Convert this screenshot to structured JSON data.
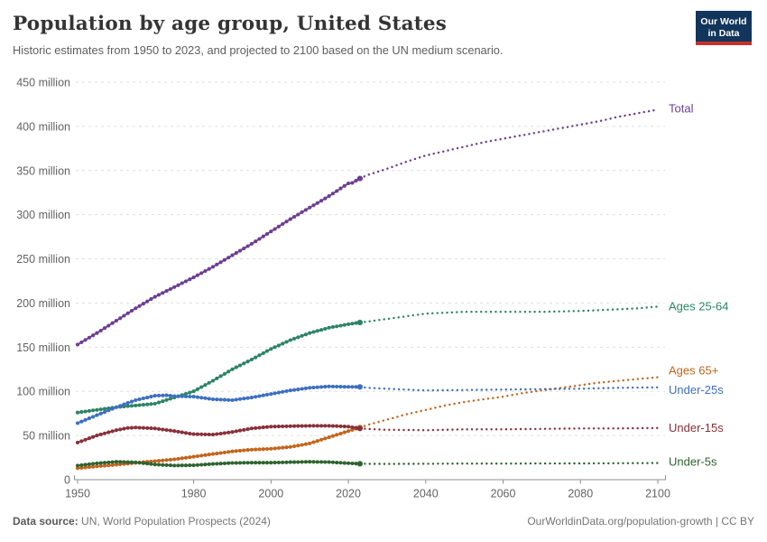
{
  "header": {
    "title": "Population by age group, United States",
    "subtitle": "Historic estimates from 1950 to 2023, and projected to 2100 based on the UN medium scenario.",
    "logo": {
      "line1": "Our World",
      "line2": "in Data"
    }
  },
  "footer": {
    "source_label": "Data source:",
    "source_text": " UN, World Population Prospects (2024)",
    "credit": "OurWorldinData.org/population-growth | CC BY"
  },
  "colors": {
    "grid": "#dedede",
    "axis": "#8f8f8f",
    "tick_text": "#636363",
    "logo_bg": "#12355B",
    "logo_accent": "#C7302B"
  },
  "chart_data": {
    "type": "line",
    "title": "Population by age group, United States",
    "unit": "million people",
    "grid": true,
    "legend_position": "right-inline-labels",
    "projection_start_year": 2023,
    "x": {
      "min": 1950,
      "max": 2100,
      "ticks": [
        1950,
        1980,
        2000,
        2020,
        2040,
        2060,
        2080,
        2100
      ]
    },
    "y": {
      "min": 0,
      "max": 450,
      "ticks": [
        0,
        50,
        100,
        150,
        200,
        250,
        300,
        350,
        400,
        450
      ],
      "tick_labels": [
        "0",
        "50 million",
        "100 million",
        "150 million",
        "200 million",
        "250 million",
        "300 million",
        "350 million",
        "400 million",
        "450 million"
      ]
    },
    "series": [
      {
        "name": "Total",
        "color": "#6D3E91",
        "label_dy": 3,
        "points": [
          [
            1950,
            153
          ],
          [
            1955,
            166
          ],
          [
            1960,
            180
          ],
          [
            1965,
            194
          ],
          [
            1970,
            207
          ],
          [
            1975,
            218
          ],
          [
            1980,
            229
          ],
          [
            1985,
            241
          ],
          [
            1990,
            254
          ],
          [
            1995,
            267
          ],
          [
            2000,
            281
          ],
          [
            2005,
            295
          ],
          [
            2010,
            308
          ],
          [
            2015,
            321
          ],
          [
            2020,
            335.5
          ],
          [
            2021,
            336
          ],
          [
            2023,
            341
          ],
          [
            2025,
            345
          ],
          [
            2030,
            352
          ],
          [
            2035,
            360
          ],
          [
            2040,
            367
          ],
          [
            2045,
            372
          ],
          [
            2050,
            377
          ],
          [
            2055,
            382
          ],
          [
            2060,
            386
          ],
          [
            2065,
            390
          ],
          [
            2070,
            394
          ],
          [
            2075,
            398
          ],
          [
            2080,
            402
          ],
          [
            2085,
            406
          ],
          [
            2090,
            411
          ],
          [
            2095,
            415
          ],
          [
            2100,
            419
          ]
        ]
      },
      {
        "name": "Ages 25-64",
        "color": "#2C8465",
        "label_dy": 4,
        "points": [
          [
            1950,
            76
          ],
          [
            1955,
            79
          ],
          [
            1960,
            82
          ],
          [
            1965,
            84
          ],
          [
            1970,
            86
          ],
          [
            1975,
            93
          ],
          [
            1980,
            100
          ],
          [
            1985,
            112
          ],
          [
            1990,
            125
          ],
          [
            1995,
            136
          ],
          [
            2000,
            148
          ],
          [
            2005,
            158
          ],
          [
            2010,
            166
          ],
          [
            2015,
            172
          ],
          [
            2020,
            176
          ],
          [
            2023,
            178
          ],
          [
            2025,
            179
          ],
          [
            2030,
            182
          ],
          [
            2035,
            185
          ],
          [
            2040,
            188
          ],
          [
            2045,
            189
          ],
          [
            2050,
            190
          ],
          [
            2060,
            190
          ],
          [
            2070,
            190
          ],
          [
            2080,
            191
          ],
          [
            2090,
            193
          ],
          [
            2095,
            194
          ],
          [
            2100,
            196
          ]
        ]
      },
      {
        "name": "Ages 65+",
        "color": "#C3651C",
        "label_dy": -3,
        "points": [
          [
            1950,
            13
          ],
          [
            1955,
            15
          ],
          [
            1960,
            17
          ],
          [
            1965,
            19
          ],
          [
            1970,
            21
          ],
          [
            1975,
            23
          ],
          [
            1980,
            26
          ],
          [
            1985,
            29
          ],
          [
            1990,
            32
          ],
          [
            1995,
            34
          ],
          [
            2000,
            35
          ],
          [
            2005,
            37
          ],
          [
            2010,
            41
          ],
          [
            2015,
            48
          ],
          [
            2020,
            55
          ],
          [
            2023,
            59
          ],
          [
            2025,
            62
          ],
          [
            2030,
            68
          ],
          [
            2035,
            74
          ],
          [
            2040,
            79
          ],
          [
            2045,
            84
          ],
          [
            2050,
            88
          ],
          [
            2055,
            91
          ],
          [
            2060,
            94
          ],
          [
            2065,
            98
          ],
          [
            2070,
            101
          ],
          [
            2075,
            104
          ],
          [
            2080,
            107
          ],
          [
            2085,
            110
          ],
          [
            2090,
            112
          ],
          [
            2095,
            114
          ],
          [
            2100,
            116
          ]
        ]
      },
      {
        "name": "Under-25s",
        "color": "#3D6FC0",
        "label_dy": 7,
        "points": [
          [
            1950,
            64
          ],
          [
            1955,
            73
          ],
          [
            1960,
            82
          ],
          [
            1965,
            90
          ],
          [
            1970,
            95
          ],
          [
            1973,
            95.5
          ],
          [
            1975,
            94.5
          ],
          [
            1980,
            94
          ],
          [
            1985,
            91
          ],
          [
            1990,
            90
          ],
          [
            1995,
            93
          ],
          [
            2000,
            97
          ],
          [
            2005,
            101
          ],
          [
            2010,
            104
          ],
          [
            2015,
            105.5
          ],
          [
            2020,
            105
          ],
          [
            2023,
            105
          ],
          [
            2025,
            104
          ],
          [
            2030,
            103
          ],
          [
            2035,
            102
          ],
          [
            2040,
            101
          ],
          [
            2050,
            101.5
          ],
          [
            2060,
            102
          ],
          [
            2070,
            102.5
          ],
          [
            2080,
            103
          ],
          [
            2090,
            104
          ],
          [
            2100,
            104.5
          ]
        ]
      },
      {
        "name": "Under-15s",
        "color": "#883039",
        "label_dy": 4,
        "points": [
          [
            1950,
            42
          ],
          [
            1955,
            50
          ],
          [
            1960,
            56
          ],
          [
            1963,
            58.5
          ],
          [
            1965,
            59
          ],
          [
            1970,
            58
          ],
          [
            1975,
            55
          ],
          [
            1980,
            51.5
          ],
          [
            1985,
            51
          ],
          [
            1990,
            54
          ],
          [
            1995,
            58
          ],
          [
            2000,
            60
          ],
          [
            2005,
            60.5
          ],
          [
            2010,
            61
          ],
          [
            2015,
            61
          ],
          [
            2020,
            60
          ],
          [
            2023,
            58
          ],
          [
            2025,
            57.5
          ],
          [
            2030,
            56.5
          ],
          [
            2040,
            56
          ],
          [
            2050,
            57
          ],
          [
            2060,
            57
          ],
          [
            2070,
            57.5
          ],
          [
            2080,
            58
          ],
          [
            2090,
            58
          ],
          [
            2100,
            58.5
          ]
        ]
      },
      {
        "name": "Under-5s",
        "color": "#2E642F",
        "label_dy": 3,
        "points": [
          [
            1950,
            16
          ],
          [
            1955,
            18.5
          ],
          [
            1960,
            20.3
          ],
          [
            1965,
            19.6
          ],
          [
            1970,
            17.2
          ],
          [
            1975,
            16
          ],
          [
            1980,
            16.3
          ],
          [
            1985,
            17.8
          ],
          [
            1990,
            18.9
          ],
          [
            1995,
            19.2
          ],
          [
            2000,
            19.2
          ],
          [
            2005,
            19.8
          ],
          [
            2010,
            20.2
          ],
          [
            2015,
            19.9
          ],
          [
            2020,
            18.6
          ],
          [
            2023,
            18
          ],
          [
            2030,
            17.8
          ],
          [
            2040,
            18
          ],
          [
            2050,
            18.2
          ],
          [
            2060,
            18.2
          ],
          [
            2070,
            18.3
          ],
          [
            2080,
            18.4
          ],
          [
            2090,
            18.6
          ],
          [
            2100,
            18.8
          ]
        ]
      }
    ]
  }
}
